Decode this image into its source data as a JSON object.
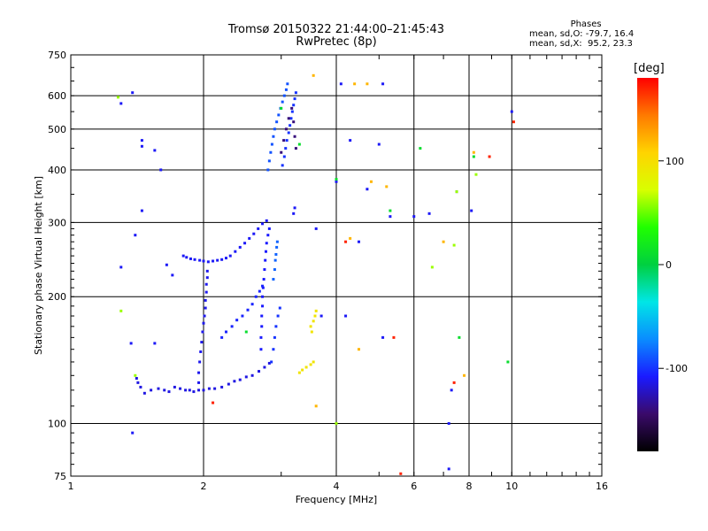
{
  "header": {
    "title_line1": "Tromsø 20150322 21:44:00–21:45:43",
    "title_line2": "RwPretec (8p)"
  },
  "stats": {
    "heading": "Phases",
    "line_o": "mean, sd,O: -79.7, 16.4",
    "line_x": "mean, sd,X:  95.2, 23.3"
  },
  "colorbar": {
    "title": "[deg]",
    "ticks": [
      {
        "value": 100,
        "label": "100"
      },
      {
        "value": 0,
        "label": "0"
      },
      {
        "value": -100,
        "label": "-100"
      }
    ],
    "range": [
      -180,
      180
    ],
    "colors": [
      "#000000",
      "#3a0a6a",
      "#1a1aff",
      "#0a8cff",
      "#00e6e6",
      "#00d040",
      "#20ff00",
      "#d8ff00",
      "#ffd400",
      "#ff7a00",
      "#ff0000"
    ]
  },
  "chart_data": {
    "type": "scatter",
    "xlabel": "Frequency [MHz]",
    "ylabel": "Stationary phase Virtual Height [km]",
    "x_scale": "log",
    "y_scale": "log",
    "xlim": [
      1,
      16
    ],
    "ylim": [
      75,
      750
    ],
    "xticks": [
      1,
      2,
      4,
      6,
      8,
      10,
      16
    ],
    "xtick_labels": [
      "1",
      "2",
      "4",
      "6",
      "8",
      "10",
      "16"
    ],
    "yticks": [
      75,
      100,
      200,
      300,
      400,
      500,
      600,
      750
    ],
    "ytick_labels": [
      "75",
      "100",
      "200",
      "300",
      "400",
      "500",
      "600",
      "750"
    ],
    "grid": true,
    "color_legend": "phase [deg], colorbar right",
    "traces": [
      {
        "name": "",
        "phase": -115,
        "points": [
          [
            1.41,
            128
          ],
          [
            1.42,
            125
          ],
          [
            1.44,
            122
          ],
          [
            1.47,
            118
          ],
          [
            1.52,
            120
          ],
          [
            1.58,
            121
          ],
          [
            1.63,
            120
          ],
          [
            1.67,
            119
          ],
          [
            1.72,
            122
          ],
          [
            1.77,
            121
          ],
          [
            1.82,
            120
          ],
          [
            1.86,
            120
          ],
          [
            1.9,
            119
          ],
          [
            1.95,
            120
          ],
          [
            2.0,
            120
          ],
          [
            2.06,
            121
          ],
          [
            2.12,
            121
          ],
          [
            2.2,
            122
          ],
          [
            2.28,
            124
          ],
          [
            2.35,
            126
          ],
          [
            2.42,
            127
          ],
          [
            2.5,
            129
          ],
          [
            2.58,
            130
          ],
          [
            2.67,
            133
          ],
          [
            2.75,
            136
          ],
          [
            2.82,
            139
          ]
        ]
      },
      {
        "name": "",
        "phase": -112,
        "points": [
          [
            1.95,
            125
          ],
          [
            1.95,
            132
          ],
          [
            1.96,
            140
          ],
          [
            1.97,
            148
          ],
          [
            1.98,
            156
          ],
          [
            1.99,
            165
          ],
          [
            2.0,
            173
          ],
          [
            2.01,
            180
          ],
          [
            2.02,
            188
          ],
          [
            2.02,
            196
          ],
          [
            2.03,
            205
          ],
          [
            2.03,
            214
          ],
          [
            2.04,
            222
          ],
          [
            2.04,
            230
          ]
        ]
      },
      {
        "name": "",
        "phase": -110,
        "points": [
          [
            1.8,
            250
          ],
          [
            1.83,
            248
          ],
          [
            1.87,
            246
          ],
          [
            1.91,
            245
          ],
          [
            1.96,
            244
          ],
          [
            2.0,
            243
          ],
          [
            2.05,
            242
          ],
          [
            2.1,
            243
          ],
          [
            2.15,
            244
          ],
          [
            2.2,
            245
          ],
          [
            2.25,
            247
          ],
          [
            2.3,
            250
          ],
          [
            2.36,
            256
          ],
          [
            2.42,
            262
          ],
          [
            2.48,
            268
          ],
          [
            2.54,
            275
          ],
          [
            2.6,
            282
          ],
          [
            2.66,
            290
          ],
          [
            2.72,
            298
          ],
          [
            2.78,
            303
          ]
        ]
      },
      {
        "name": "",
        "phase": -108,
        "points": [
          [
            2.7,
            150
          ],
          [
            2.7,
            160
          ],
          [
            2.71,
            170
          ],
          [
            2.71,
            180
          ],
          [
            2.72,
            190
          ],
          [
            2.72,
            200
          ],
          [
            2.73,
            210
          ],
          [
            2.74,
            220
          ],
          [
            2.75,
            232
          ],
          [
            2.76,
            244
          ],
          [
            2.77,
            256
          ],
          [
            2.78,
            268
          ],
          [
            2.8,
            280
          ],
          [
            2.82,
            290
          ]
        ]
      },
      {
        "name": "",
        "phase": -105,
        "points": [
          [
            2.2,
            160
          ],
          [
            2.25,
            165
          ],
          [
            2.32,
            170
          ],
          [
            2.38,
            176
          ],
          [
            2.45,
            180
          ],
          [
            2.52,
            186
          ],
          [
            2.58,
            192
          ],
          [
            2.63,
            200
          ],
          [
            2.68,
            206
          ],
          [
            2.72,
            212
          ]
        ]
      },
      {
        "name": "",
        "phase": -100,
        "points": [
          [
            2.85,
            140
          ],
          [
            2.88,
            150
          ],
          [
            2.9,
            160
          ],
          [
            2.92,
            170
          ],
          [
            2.95,
            180
          ],
          [
            2.98,
            188
          ]
        ]
      },
      {
        "name": "",
        "phase": -85,
        "points": [
          [
            2.88,
            220
          ],
          [
            2.9,
            232
          ],
          [
            2.91,
            244
          ],
          [
            2.92,
            252
          ],
          [
            2.93,
            262
          ],
          [
            2.94,
            270
          ]
        ]
      },
      {
        "name": "",
        "phase": -90,
        "points": [
          [
            2.8,
            400
          ],
          [
            2.82,
            420
          ],
          [
            2.84,
            440
          ],
          [
            2.86,
            460
          ],
          [
            2.88,
            480
          ],
          [
            2.9,
            500
          ],
          [
            2.93,
            520
          ],
          [
            2.96,
            540
          ],
          [
            2.99,
            560
          ],
          [
            3.02,
            580
          ],
          [
            3.05,
            600
          ],
          [
            3.08,
            620
          ],
          [
            3.1,
            640
          ]
        ]
      },
      {
        "name": "",
        "phase": -100,
        "points": [
          [
            3.02,
            410
          ],
          [
            3.05,
            430
          ],
          [
            3.07,
            450
          ],
          [
            3.09,
            470
          ],
          [
            3.12,
            490
          ],
          [
            3.14,
            510
          ],
          [
            3.16,
            530
          ],
          [
            3.18,
            550
          ],
          [
            3.2,
            570
          ],
          [
            3.22,
            590
          ],
          [
            3.24,
            610
          ]
        ]
      },
      {
        "name": "",
        "phase": -140,
        "points": [
          [
            3.0,
            440
          ],
          [
            3.04,
            470
          ],
          [
            3.08,
            500
          ],
          [
            3.12,
            530
          ],
          [
            3.17,
            560
          ],
          [
            3.2,
            520
          ],
          [
            3.22,
            480
          ],
          [
            3.24,
            450
          ]
        ]
      },
      {
        "name": "",
        "phase": 95,
        "points": [
          [
            3.3,
            132
          ],
          [
            3.35,
            134
          ],
          [
            3.42,
            136
          ],
          [
            3.5,
            138
          ],
          [
            3.55,
            140
          ],
          [
            3.5,
            170
          ],
          [
            3.55,
            175
          ],
          [
            3.58,
            180
          ],
          [
            3.6,
            185
          ],
          [
            3.52,
            165
          ]
        ]
      },
      {
        "name": "",
        "phase": -110,
        "points": [
          [
            1.3,
            575
          ],
          [
            1.38,
            610
          ],
          [
            1.3,
            235
          ],
          [
            1.37,
            155
          ],
          [
            1.45,
            470
          ],
          [
            1.45,
            455
          ],
          [
            1.55,
            445
          ],
          [
            1.55,
            155
          ],
          [
            1.45,
            320
          ],
          [
            1.4,
            280
          ],
          [
            1.38,
            95
          ],
          [
            1.6,
            400
          ],
          [
            1.65,
            238
          ],
          [
            1.7,
            225
          ],
          [
            3.2,
            315
          ],
          [
            3.22,
            325
          ],
          [
            3.6,
            290
          ],
          [
            3.7,
            180
          ],
          [
            4.2,
            180
          ],
          [
            4.0,
            375
          ],
          [
            4.1,
            640
          ],
          [
            4.3,
            470
          ],
          [
            4.7,
            360
          ],
          [
            5.0,
            460
          ],
          [
            5.1,
            640
          ],
          [
            5.3,
            310
          ],
          [
            6.5,
            315
          ],
          [
            7.2,
            100
          ],
          [
            7.2,
            78
          ],
          [
            8.1,
            320
          ],
          [
            10.0,
            550
          ],
          [
            7.3,
            120
          ],
          [
            7.5,
            355
          ],
          [
            4.5,
            270
          ],
          [
            5.1,
            160
          ],
          [
            6.0,
            310
          ]
        ]
      },
      {
        "name": "",
        "phase": 60,
        "points": [
          [
            1.28,
            595
          ],
          [
            4.0,
            100
          ],
          [
            7.5,
            355
          ],
          [
            7.4,
            265
          ],
          [
            8.3,
            390
          ],
          [
            6.6,
            235
          ],
          [
            1.3,
            185
          ],
          [
            1.4,
            130
          ]
        ]
      },
      {
        "name": "",
        "phase": 120,
        "points": [
          [
            3.55,
            670
          ],
          [
            4.4,
            640
          ],
          [
            4.7,
            640
          ],
          [
            4.8,
            375
          ],
          [
            5.2,
            365
          ],
          [
            7.0,
            270
          ],
          [
            8.2,
            440
          ],
          [
            4.3,
            275
          ],
          [
            4.5,
            150
          ],
          [
            3.6,
            110
          ],
          [
            7.8,
            130
          ]
        ]
      },
      {
        "name": "",
        "phase": 170,
        "points": [
          [
            2.1,
            112
          ],
          [
            4.2,
            270
          ],
          [
            5.4,
            160
          ],
          [
            8.9,
            430
          ],
          [
            10.1,
            520
          ],
          [
            7.4,
            125
          ],
          [
            5.6,
            76
          ]
        ]
      },
      {
        "name": "",
        "phase": 10,
        "points": [
          [
            4.0,
            380
          ],
          [
            5.3,
            320
          ],
          [
            6.2,
            450
          ],
          [
            7.6,
            160
          ],
          [
            8.2,
            430
          ],
          [
            9.8,
            140
          ],
          [
            3.0,
            560
          ],
          [
            2.5,
            165
          ],
          [
            3.3,
            460
          ]
        ]
      }
    ]
  }
}
